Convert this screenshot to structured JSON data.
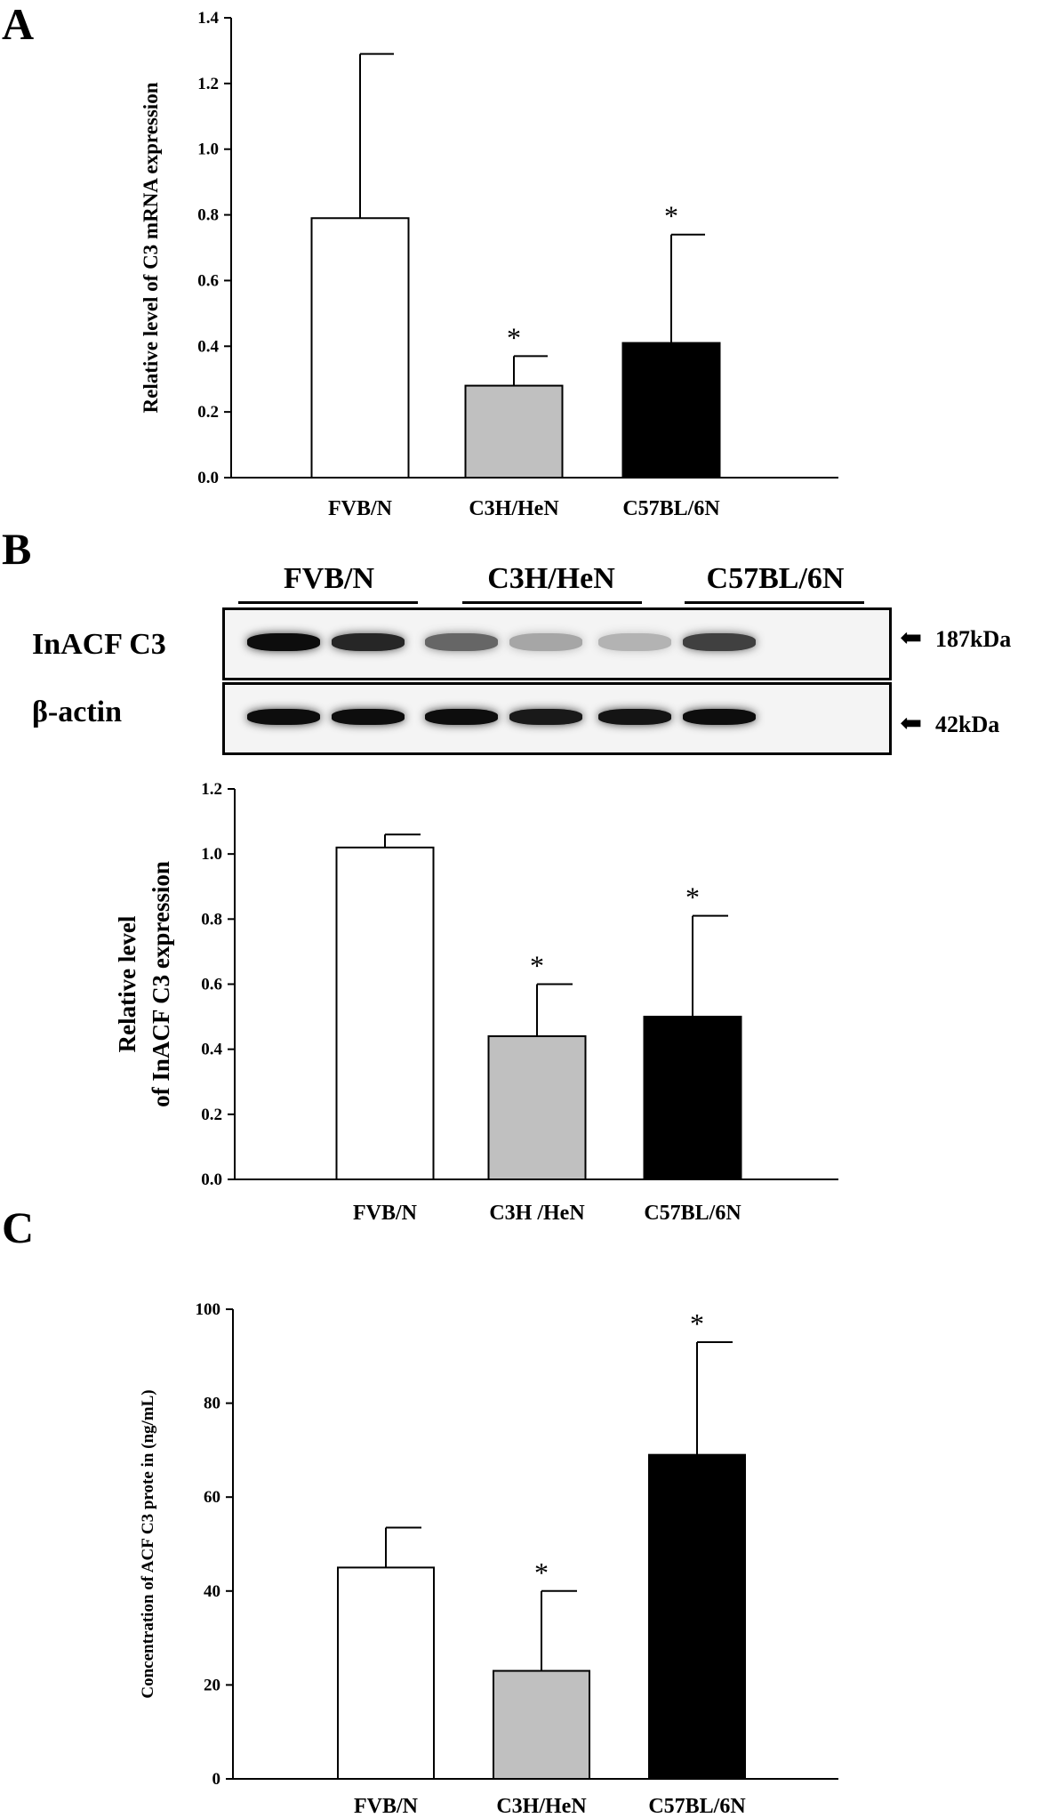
{
  "panels": {
    "a": "A",
    "b": "B",
    "c": "C"
  },
  "blot": {
    "groups": [
      "FVB/N",
      "C3H/HeN",
      "C57BL/6N"
    ],
    "rows": [
      {
        "label": "InACF C3",
        "size": "187kDa",
        "intensity": [
          0.95,
          0.85,
          0.6,
          0.35,
          0.3,
          0.75
        ]
      },
      {
        "label": "β-actin",
        "size": "42kDa",
        "intensity": [
          0.95,
          0.95,
          0.95,
          0.9,
          0.92,
          0.95
        ]
      }
    ],
    "arrow": "⬅"
  },
  "chart_data": [
    {
      "type": "bar",
      "panel": "A",
      "categories": [
        "FVB/N",
        "C3H/HeN",
        "C57BL/6N"
      ],
      "values": [
        0.79,
        0.28,
        0.41
      ],
      "errors": [
        0.5,
        0.09,
        0.33
      ],
      "significance": [
        "",
        "*",
        "*"
      ],
      "bar_colors": [
        "#ffffff",
        "#c0c0c0",
        "#000000"
      ],
      "ylabel": "Relative level of C3 mRNA expression",
      "ylim": [
        0,
        1.4
      ],
      "yticks": [
        "0.0",
        "0.2",
        "0.4",
        "0.6",
        "0.8",
        "1.0",
        "1.2",
        "1.4"
      ]
    },
    {
      "type": "bar",
      "panel": "B",
      "categories": [
        "FVB/N",
        "C3H /HeN",
        "C57BL/6N"
      ],
      "values": [
        1.02,
        0.44,
        0.5
      ],
      "errors": [
        0.04,
        0.16,
        0.31
      ],
      "significance": [
        "",
        "*",
        "*"
      ],
      "bar_colors": [
        "#ffffff",
        "#c0c0c0",
        "#000000"
      ],
      "ylabel_lines": [
        "Relative level",
        "of InACF C3 expression"
      ],
      "ylim": [
        0,
        1.2
      ],
      "yticks": [
        "0.0",
        "0.2",
        "0.4",
        "0.6",
        "0.8",
        "1.0",
        "1.2"
      ]
    },
    {
      "type": "bar",
      "panel": "C",
      "categories": [
        "FVB/N",
        "C3H/HeN",
        "C57BL/6N"
      ],
      "values": [
        45,
        23,
        69
      ],
      "errors": [
        8.5,
        17,
        24
      ],
      "significance": [
        "",
        "*",
        "*"
      ],
      "bar_colors": [
        "#ffffff",
        "#c0c0c0",
        "#000000"
      ],
      "ylabel": "Concentration of  ACF C3 prote in (ng/mL)",
      "ylim": [
        0,
        100
      ],
      "yticks": [
        "0",
        "20",
        "40",
        "60",
        "80",
        "100"
      ]
    }
  ]
}
